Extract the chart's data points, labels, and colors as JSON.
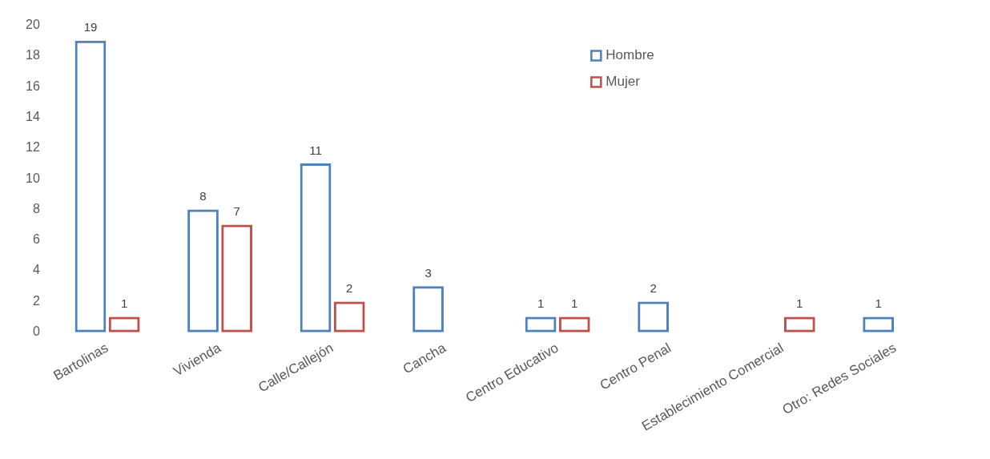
{
  "chart_data": {
    "type": "bar",
    "categories": [
      "Bartolinas",
      "Vivienda",
      "Calle/Callejón",
      "Cancha",
      "Centro Educativo",
      "Centro Penal",
      "Establecimiento Comercial",
      "Otro: Redes Sociales"
    ],
    "series": [
      {
        "name": "Hombre",
        "color": "#4f81bd",
        "values": [
          19,
          8,
          11,
          3,
          1,
          2,
          null,
          1
        ]
      },
      {
        "name": "Mujer",
        "color": "#c0504d",
        "values": [
          1,
          7,
          2,
          null,
          1,
          null,
          1,
          null
        ]
      }
    ],
    "ylim": [
      0,
      20
    ],
    "yticks": [
      0,
      2,
      4,
      6,
      8,
      10,
      12,
      14,
      16,
      18,
      20
    ],
    "grid": false,
    "legend": "top right",
    "data_labels": true
  }
}
